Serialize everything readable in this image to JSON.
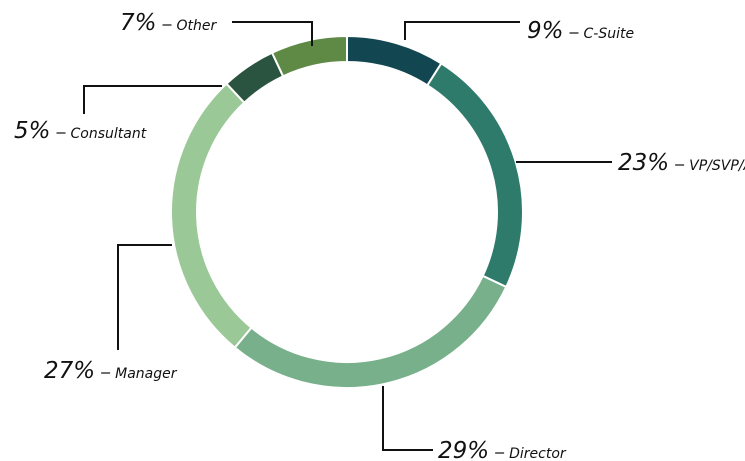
{
  "chart_data": {
    "type": "donut",
    "categories": [
      "C-Suite",
      "VP/SVP/AVP",
      "Director",
      "Manager",
      "Consultant",
      "Other"
    ],
    "values": [
      9,
      23,
      29,
      27,
      5,
      7
    ],
    "value_labels": [
      "9%",
      "23%",
      "29%",
      "27%",
      "5%",
      "7%"
    ],
    "colors": [
      "#124650",
      "#2e7b6c",
      "#77b08a",
      "#9ac897",
      "#2a5440",
      "#5e8a45"
    ]
  }
}
